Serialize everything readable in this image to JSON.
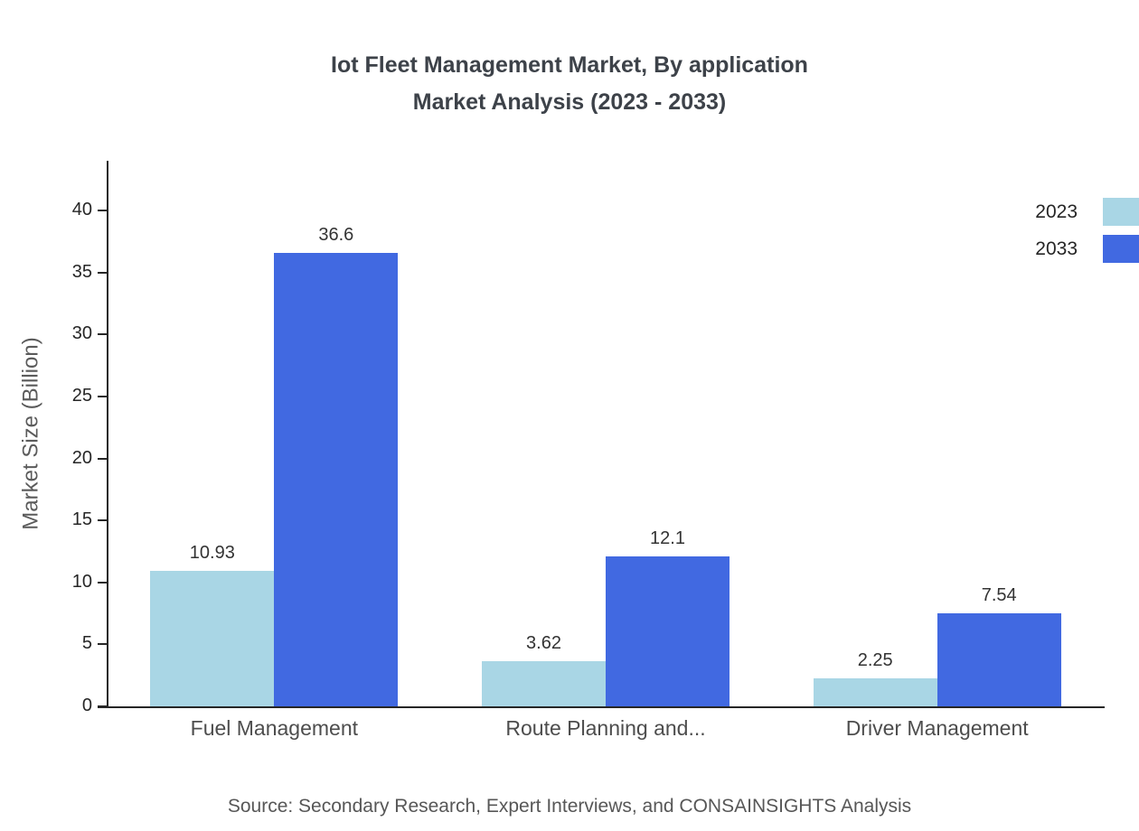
{
  "title_lines": [
    "Iot Fleet Management Market, By application",
    "Market Analysis (2023 - 2033)"
  ],
  "source": "Source: Secondary Research, Expert Interviews, and CONSAINSIGHTS Analysis",
  "chart_data": {
    "type": "bar",
    "title": "Iot Fleet Management Market, By application Market Analysis (2023 - 2033)",
    "categories": [
      "Fuel Management",
      "Route Planning and...",
      "Driver Management"
    ],
    "series": [
      {
        "name": "2023",
        "color": "#a9d6e5",
        "values": [
          10.93,
          3.62,
          2.25
        ]
      },
      {
        "name": "2033",
        "color": "#4169e1",
        "values": [
          36.6,
          12.1,
          7.54
        ]
      }
    ],
    "xlabel": "",
    "ylabel": "Market Size (Billion)",
    "ylim": [
      0,
      44
    ],
    "yticks": [
      0,
      5,
      10,
      15,
      20,
      25,
      30,
      35,
      40
    ],
    "grid": false,
    "legend_position": "top-right",
    "axis_color": "#262626"
  }
}
